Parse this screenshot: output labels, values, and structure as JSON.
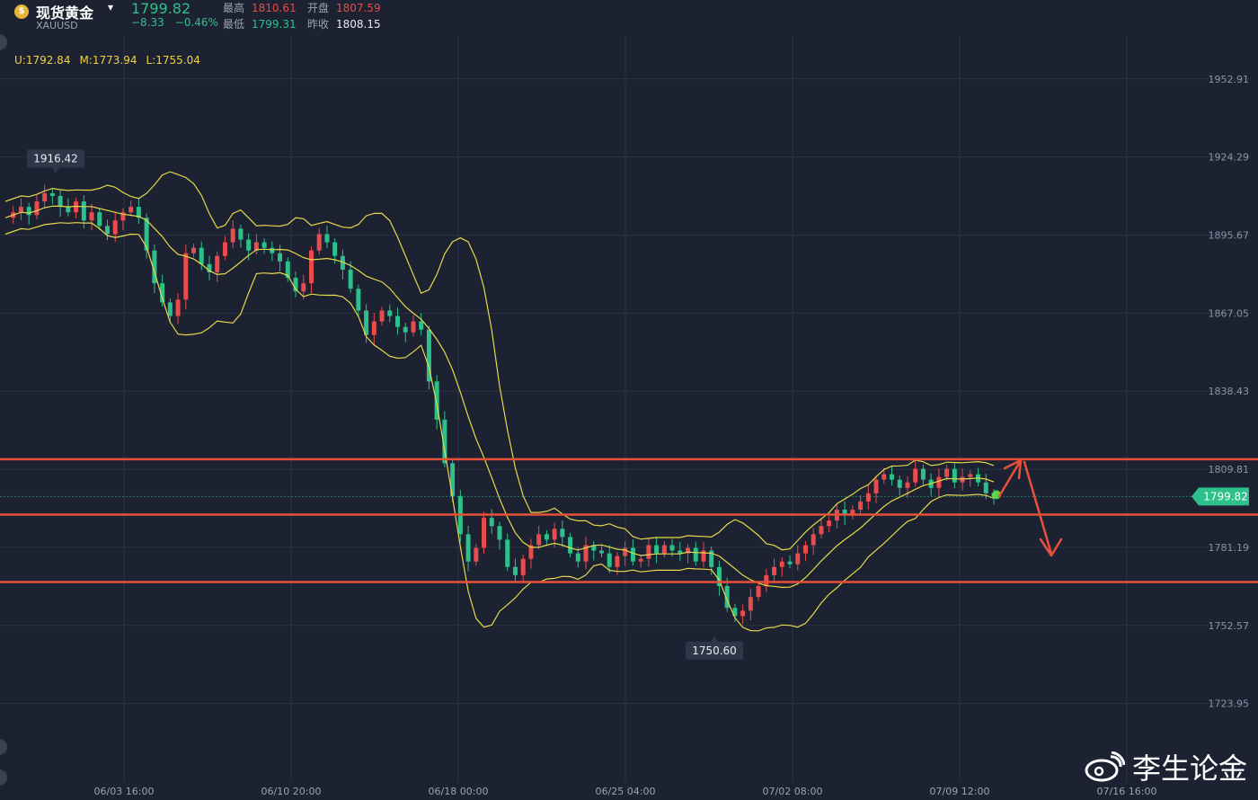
{
  "header": {
    "symbol_name": "现货黄金",
    "symbol_code": "XAUUSD",
    "price": "1799.82",
    "change": "−8.33",
    "change_pct": "−0.46%",
    "high_label": "最高",
    "high_value": "1810.61",
    "open_label": "开盘",
    "open_value": "1807.59",
    "low_label": "最低",
    "low_value": "1799.31",
    "prev_close_label": "昨收",
    "prev_close_value": "1808.15"
  },
  "indicator": {
    "upper": "U:1792.84",
    "middle": "M:1773.94",
    "lower": "L:1755.04",
    "color": "#f2d23a"
  },
  "watermark": "李生论金",
  "chart_data": {
    "type": "candlestick",
    "ylim": [
      1710,
      1967
    ],
    "y_ticks": [
      "1952.91",
      "1924.29",
      "1895.67",
      "1867.05",
      "1838.43",
      "1809.81",
      "1781.19",
      "1752.57",
      "1723.95"
    ],
    "x_ticks": [
      "06/03 16:00",
      "06/10 20:00",
      "06/18 00:00",
      "06/25 04:00",
      "07/02 08:00",
      "07/09 12:00",
      "07/16 16:00"
    ],
    "last_price_label": "1799.82",
    "high_marker": "1916.42",
    "low_marker": "1750.60",
    "horizontal_levels": [
      1813.5,
      1793.2,
      1768.5
    ],
    "colors": {
      "up": "#e84c4c",
      "down": "#2ec08b",
      "band": "#e6d84a",
      "level": "#e8503a",
      "background": "#1c2231"
    },
    "close_path": [
      1902,
      1904,
      1906,
      1903,
      1908,
      1911,
      1910,
      1906,
      1904,
      1908,
      1901,
      1904,
      1899,
      1896,
      1901,
      1904,
      1906,
      1902,
      1890,
      1878,
      1871,
      1866,
      1872,
      1889,
      1891,
      1885,
      1882,
      1888,
      1893,
      1898,
      1894,
      1890,
      1893,
      1891,
      1889,
      1886,
      1880,
      1875,
      1878,
      1890,
      1896,
      1893,
      1888,
      1883,
      1876,
      1868,
      1859,
      1864,
      1868,
      1866,
      1862,
      1860,
      1864,
      1861,
      1842,
      1828,
      1812,
      1800,
      1786,
      1776,
      1781,
      1792,
      1789,
      1784,
      1774,
      1771,
      1777,
      1782,
      1786,
      1784,
      1788,
      1785,
      1779,
      1776,
      1782,
      1780,
      1779,
      1774,
      1778,
      1781,
      1776,
      1777,
      1782,
      1779,
      1782,
      1780,
      1779,
      1781,
      1776,
      1780,
      1774,
      1767,
      1759,
      1756,
      1758,
      1763,
      1767,
      1771,
      1774,
      1776,
      1775,
      1779,
      1782,
      1786,
      1789,
      1791,
      1795,
      1793,
      1795,
      1798,
      1801,
      1806,
      1808,
      1806,
      1803,
      1805,
      1810,
      1806,
      1803,
      1807,
      1810,
      1805,
      1807,
      1808,
      1805,
      1801,
      1799.82
    ]
  }
}
